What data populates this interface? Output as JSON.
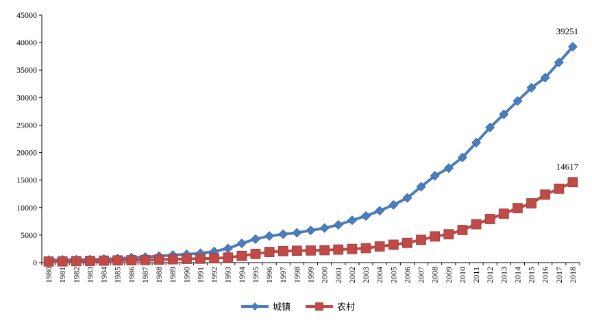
{
  "chart_data": {
    "type": "line",
    "title": "",
    "xlabel": "",
    "ylabel": "",
    "ylim": [
      0,
      45000
    ],
    "yticks": [
      0,
      5000,
      10000,
      15000,
      20000,
      25000,
      30000,
      35000,
      40000,
      45000
    ],
    "grid": false,
    "legend_position": "bottom",
    "x": [
      "1980",
      "1981",
      "1982",
      "1983",
      "1984",
      "1985",
      "1986",
      "1987",
      "1988",
      "1989",
      "1990",
      "1991",
      "1992",
      "1993",
      "1994",
      "1995",
      "1996",
      "1997",
      "1998",
      "1999",
      "2000",
      "2001",
      "2002",
      "2003",
      "2004",
      "2005",
      "2006",
      "2007",
      "2008",
      "2009",
      "2010",
      "2011",
      "2012",
      "2013",
      "2014",
      "2015",
      "2016",
      "2017",
      "2018"
    ],
    "series": [
      {
        "name": "城镇",
        "color": "#4a7ebb",
        "marker": "diamond",
        "values": [
          478,
          500,
          535,
          564,
          651,
          739,
          900,
          1002,
          1181,
          1374,
          1510,
          1701,
          2027,
          2577,
          3496,
          4283,
          4839,
          5160,
          5425,
          5854,
          6280,
          6860,
          7703,
          8472,
          9422,
          10493,
          11759,
          13786,
          15781,
          17175,
          19109,
          21810,
          24565,
          26955,
          29381,
          31790,
          33616,
          36396,
          39251
        ],
        "end_label": "39251"
      },
      {
        "name": "农村",
        "color": "#be4b48",
        "marker": "square",
        "values": [
          191,
          223,
          270,
          310,
          355,
          398,
          424,
          463,
          545,
          602,
          686,
          709,
          784,
          922,
          1221,
          1578,
          1926,
          2090,
          2162,
          2210,
          2253,
          2366,
          2476,
          2622,
          2936,
          3255,
          3587,
          4140,
          4761,
          5153,
          5919,
          6977,
          7917,
          8896,
          9892,
          10772,
          12363,
          13432,
          14617
        ],
        "end_label": "14617"
      }
    ]
  }
}
